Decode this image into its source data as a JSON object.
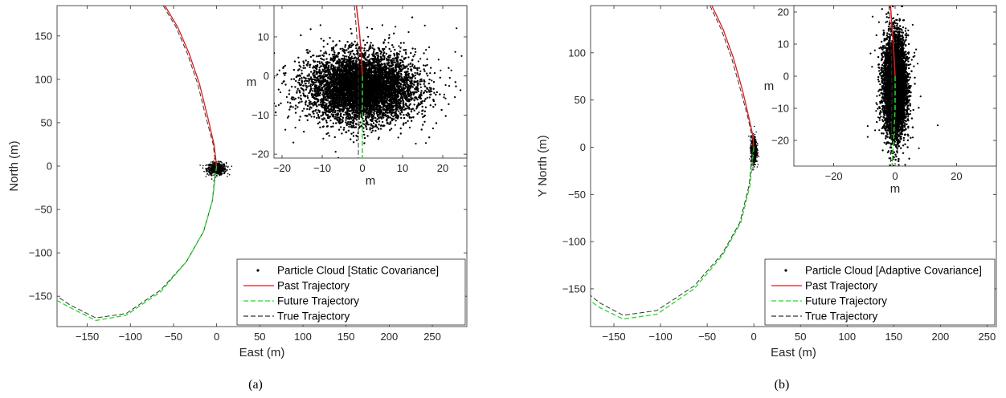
{
  "chart_data": [
    {
      "type": "scatter",
      "caption": "(a)",
      "xlabel": "East (m)",
      "ylabel": "North (m)",
      "xlim": [
        -185,
        290
      ],
      "ylim": [
        -185,
        185
      ],
      "xticks": [
        -150,
        -100,
        -50,
        0,
        50,
        100,
        150,
        200,
        250
      ],
      "yticks": [
        -150,
        -100,
        -50,
        0,
        50,
        100,
        150
      ],
      "legend_position": "bottom-right",
      "legend": [
        "Particle Cloud [Static Covariance]",
        "Past Trajectory",
        "Future Trajectory",
        "True Trajectory"
      ],
      "series": [
        {
          "name": "Particle Cloud [Static Covariance]",
          "style": "points",
          "color": "#000000",
          "center": [
            0,
            -3
          ],
          "spread": [
            5.5,
            3.5
          ]
        },
        {
          "name": "Past Trajectory",
          "style": "solid",
          "color": "#e41a1c",
          "x": [
            -60,
            -45,
            -32,
            -20,
            -10,
            -3,
            0
          ],
          "y": [
            185,
            160,
            130,
            95,
            55,
            25,
            0
          ]
        },
        {
          "name": "Future Trajectory",
          "style": "dashed",
          "color": "#22dd22",
          "x": [
            0,
            -5,
            -15,
            -35,
            -65,
            -105,
            -140,
            -170,
            -185
          ],
          "y": [
            0,
            -40,
            -75,
            -110,
            -145,
            -172,
            -178,
            -163,
            -155
          ]
        },
        {
          "name": "True Trajectory",
          "style": "dashed",
          "color": "#333333",
          "x": [
            -62,
            -47,
            -34,
            -22,
            -12,
            -4,
            -1,
            -5,
            -15,
            -35,
            -65,
            -105,
            -140,
            -170,
            -185
          ],
          "y": [
            185,
            160,
            130,
            95,
            55,
            25,
            0,
            -40,
            -75,
            -110,
            -143,
            -170,
            -175,
            -160,
            -150
          ]
        }
      ],
      "inset": {
        "xlabel": "m",
        "ylabel": "m",
        "xlim": [
          -22,
          26
        ],
        "ylim": [
          -21,
          18
        ],
        "xticks": [
          -20,
          -10,
          0,
          10,
          20
        ],
        "yticks": [
          -20,
          -10,
          0,
          10
        ],
        "cloud": {
          "center": [
            0,
            -3
          ],
          "spread": [
            6.5,
            4.2
          ]
        },
        "past": {
          "x": [
            -1.5,
            -0.8,
            -0.3,
            0
          ],
          "y": [
            18,
            12,
            6,
            0
          ]
        },
        "future": {
          "x": [
            0,
            0,
            0,
            0
          ],
          "y": [
            0,
            -8,
            -15,
            -21
          ]
        },
        "true": {
          "x": [
            -2,
            -1.5,
            -1,
            -1,
            -1
          ],
          "y": [
            18,
            12,
            4,
            -8,
            -21
          ]
        }
      }
    },
    {
      "type": "scatter",
      "caption": "(b)",
      "xlabel": "East (m)",
      "ylabel": "Y North (m)",
      "xlim": [
        -175,
        260
      ],
      "ylim": [
        -190,
        150
      ],
      "xticks": [
        -150,
        -100,
        -50,
        0,
        50,
        100,
        150,
        200,
        250
      ],
      "yticks": [
        -150,
        -100,
        -50,
        0,
        50,
        100
      ],
      "legend_position": "bottom-right",
      "legend": [
        "Particle Cloud [Adaptive Covariance]",
        "Past Trajectory",
        "Future Trajectory",
        "True Trajectory"
      ],
      "series": [
        {
          "name": "Particle Cloud [Adaptive Covariance]",
          "style": "points",
          "color": "#000000",
          "center": [
            0,
            -3
          ],
          "spread": [
            1.6,
            7
          ]
        },
        {
          "name": "Past Trajectory",
          "style": "solid",
          "color": "#e41a1c",
          "x": [
            -45,
            -33,
            -22,
            -12,
            -5,
            -1,
            0
          ],
          "y": [
            150,
            125,
            95,
            60,
            30,
            12,
            0
          ]
        },
        {
          "name": "Future Trajectory",
          "style": "dashed",
          "color": "#22dd22",
          "x": [
            0,
            -4,
            -14,
            -34,
            -64,
            -104,
            -140,
            -165,
            -175
          ],
          "y": [
            0,
            -40,
            -80,
            -115,
            -150,
            -177,
            -182,
            -170,
            -163
          ]
        },
        {
          "name": "True Trajectory",
          "style": "dashed",
          "color": "#333333",
          "x": [
            -47,
            -35,
            -24,
            -14,
            -6,
            -2,
            -1,
            -5,
            -15,
            -34,
            -64,
            -104,
            -140,
            -165,
            -175
          ],
          "y": [
            150,
            125,
            95,
            60,
            30,
            12,
            0,
            -40,
            -80,
            -113,
            -147,
            -173,
            -178,
            -165,
            -157
          ]
        }
      ],
      "inset": {
        "xlabel": "m",
        "ylabel": "m",
        "xlim": [
          -33,
          33
        ],
        "ylim": [
          -28,
          22
        ],
        "xticks": [
          -20,
          0,
          20
        ],
        "yticks": [
          -20,
          -10,
          0,
          10,
          20
        ],
        "cloud": {
          "center": [
            0,
            -3
          ],
          "spread": [
            1.8,
            7.5
          ]
        },
        "past": {
          "x": [
            -1.5,
            -1,
            -0.4,
            0
          ],
          "y": [
            22,
            15,
            7,
            0
          ]
        },
        "future": {
          "x": [
            0,
            0,
            -0.5,
            -1
          ],
          "y": [
            0,
            -10,
            -20,
            -28
          ]
        },
        "true": {
          "x": [
            -2,
            -1.6,
            -1.2,
            -1,
            -1.2,
            -1.5
          ],
          "y": [
            22,
            15,
            6,
            -5,
            -16,
            -28
          ]
        }
      }
    }
  ]
}
